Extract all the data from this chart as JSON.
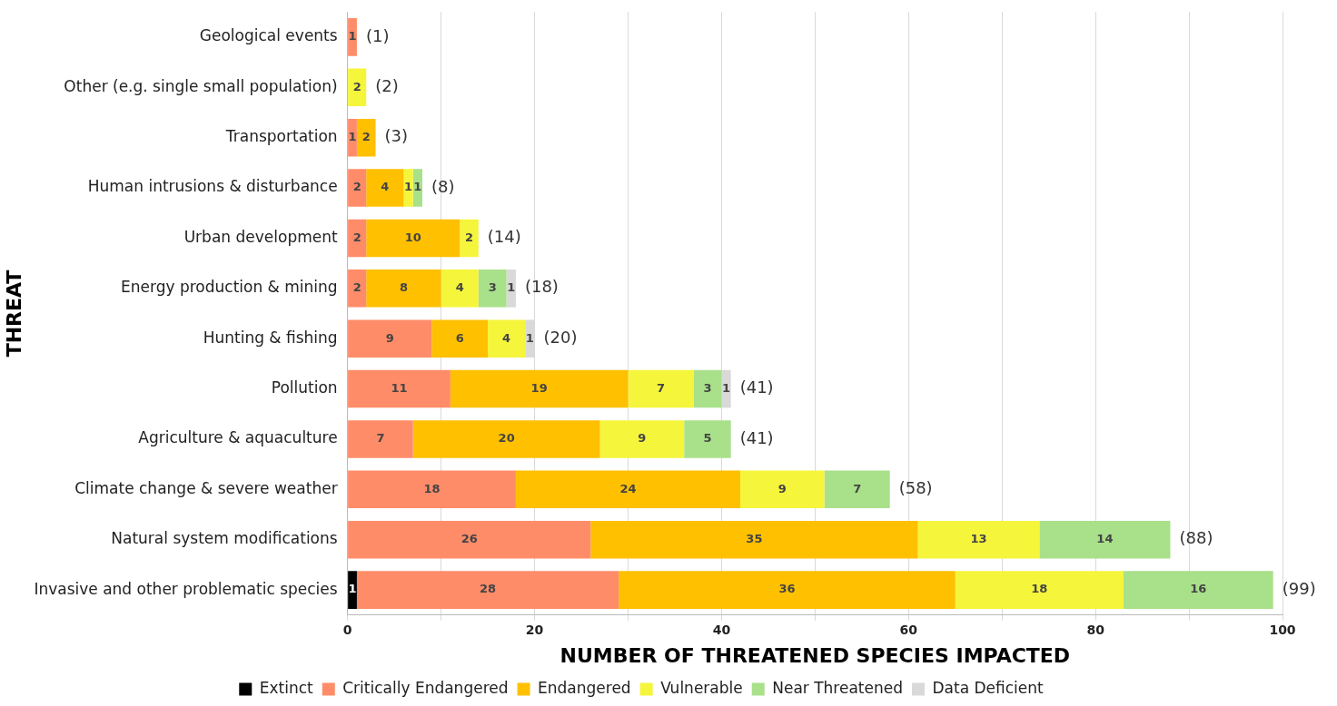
{
  "chart_data": {
    "type": "bar",
    "orientation": "horizontal",
    "stacked": true,
    "xlabel": "NUMBER OF THREATENED SPECIES IMPACTED",
    "ylabel": "THREAT",
    "categories": [
      "Geological events",
      "Other (e.g. single small population)",
      "Transportation",
      "Human intrusions & disturbance",
      "Urban development",
      "Energy production & mining",
      "Hunting & fishing",
      "Pollution",
      "Agriculture & aquaculture",
      "Climate change & severe weather",
      "Natural system modifications",
      "Invasive and other problematic species"
    ],
    "series": [
      {
        "name": "Extinct",
        "color": "#000000",
        "values": [
          null,
          null,
          null,
          null,
          null,
          null,
          null,
          null,
          null,
          null,
          null,
          1
        ]
      },
      {
        "name": "Critically Endangered",
        "color": "#ff8c69",
        "values": [
          1,
          null,
          1,
          2,
          2,
          2,
          9,
          11,
          7,
          18,
          26,
          28
        ]
      },
      {
        "name": "Endangered",
        "color": "#ffc000",
        "values": [
          null,
          null,
          2,
          4,
          10,
          8,
          6,
          19,
          20,
          24,
          35,
          36
        ]
      },
      {
        "name": "Vulnerable",
        "color": "#f5f53c",
        "values": [
          null,
          2,
          null,
          1,
          2,
          4,
          4,
          7,
          9,
          9,
          13,
          18
        ]
      },
      {
        "name": "Near Threatened",
        "color": "#a9e08a",
        "values": [
          null,
          null,
          null,
          1,
          null,
          3,
          null,
          3,
          5,
          7,
          14,
          16
        ]
      },
      {
        "name": "Data Deficient",
        "color": "#d9d9d9",
        "values": [
          null,
          null,
          null,
          null,
          null,
          1,
          1,
          1,
          null,
          null,
          null,
          null
        ]
      }
    ],
    "totals": [
      "(1)",
      "(2)",
      "(3)",
      "(8)",
      "(14)",
      "(18)",
      "(20)",
      "(41)",
      "(41)",
      "(58)",
      "(88)",
      "(99)"
    ],
    "data_labels": true,
    "xlim": [
      0,
      100
    ],
    "xticks": [
      0,
      {
        "value": 10,
        "label": null
      },
      20,
      {
        "value": 30,
        "label": null
      },
      40,
      {
        "value": 50,
        "label": null
      },
      60,
      {
        "value": 70,
        "label": null
      },
      80,
      {
        "value": 90,
        "label": null
      },
      100
    ],
    "grid": "x",
    "legend": "bottom"
  }
}
